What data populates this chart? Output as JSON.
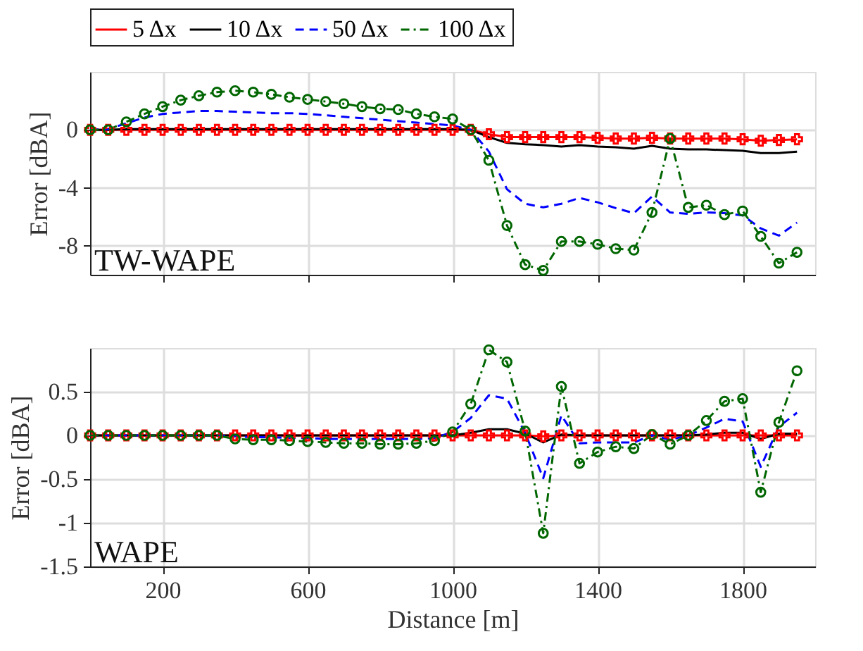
{
  "chart_data": [
    {
      "type": "line",
      "ylabel": "Error [dBA]",
      "xlim": [
        0,
        2000
      ],
      "xticks": [
        200,
        600,
        1000,
        1400,
        1800
      ],
      "ylim": [
        -10,
        4
      ],
      "yticks": [
        -8,
        -4,
        0
      ],
      "grid": true,
      "legend": "top",
      "tick_labels": "y",
      "annotations": [
        "TW-WAPE"
      ],
      "x": [
        0,
        50,
        100,
        150,
        200,
        250,
        300,
        350,
        400,
        450,
        500,
        550,
        600,
        650,
        700,
        750,
        800,
        850,
        900,
        950,
        1000,
        1050,
        1100,
        1150,
        1200,
        1250,
        1300,
        1350,
        1400,
        1450,
        1500,
        1550,
        1600,
        1650,
        1700,
        1750,
        1800,
        1850,
        1900,
        1950
      ],
      "series": [
        {
          "name": "5 Δx",
          "color": "#ff0000",
          "marker": "cross",
          "line_style": "solid",
          "values": [
            0,
            0,
            0,
            0,
            0,
            0,
            0,
            0,
            0,
            0,
            0,
            0,
            0,
            0,
            0,
            0,
            0,
            0,
            0,
            0,
            0,
            0,
            -0.3,
            -0.5,
            -0.5,
            -0.5,
            -0.5,
            -0.5,
            -0.55,
            -0.6,
            -0.6,
            -0.55,
            -0.6,
            -0.6,
            -0.6,
            -0.6,
            -0.65,
            -0.75,
            -0.7,
            -0.65
          ]
        },
        {
          "name": "10 Δx",
          "color": "#000000",
          "marker": "none",
          "line_style": "solid",
          "values": [
            0,
            0,
            0.05,
            0.05,
            0.05,
            0.05,
            0.05,
            0.05,
            0.05,
            0.05,
            0.05,
            0.05,
            0.05,
            0.05,
            0.05,
            0.05,
            0.05,
            0.05,
            0.05,
            0.05,
            0.05,
            0,
            -0.5,
            -0.9,
            -1.0,
            -1.05,
            -1.15,
            -1.05,
            -1.15,
            -1.2,
            -1.3,
            -1.1,
            -1.3,
            -1.35,
            -1.35,
            -1.4,
            -1.45,
            -1.6,
            -1.6,
            -1.5
          ]
        },
        {
          "name": "50 Δx",
          "color": "#0000ff",
          "marker": "none",
          "line_style": "dashed",
          "values": [
            0,
            0.05,
            0.45,
            0.85,
            1.1,
            1.2,
            1.3,
            1.3,
            1.25,
            1.2,
            1.15,
            1.15,
            1.1,
            1.0,
            0.9,
            0.8,
            0.7,
            0.6,
            0.5,
            0.4,
            0.3,
            0,
            -1.5,
            -4.1,
            -5.1,
            -5.35,
            -5.1,
            -4.7,
            -5.0,
            -5.4,
            -5.75,
            -4.6,
            -5.7,
            -5.8,
            -5.7,
            -5.75,
            -5.9,
            -6.8,
            -7.3,
            -6.4
          ]
        },
        {
          "name": "100 Δx",
          "color": "#006600",
          "marker": "circle",
          "line_style": "dotted",
          "values": [
            0,
            0,
            0.55,
            1.1,
            1.6,
            2.05,
            2.35,
            2.6,
            2.7,
            2.6,
            2.45,
            2.25,
            2.1,
            1.95,
            1.8,
            1.6,
            1.45,
            1.4,
            1.1,
            0.9,
            0.75,
            0,
            -2.1,
            -6.6,
            -9.3,
            -9.7,
            -7.7,
            -7.7,
            -7.9,
            -8.2,
            -8.3,
            -5.7,
            -0.6,
            -5.35,
            -5.2,
            -5.85,
            -5.6,
            -7.35,
            -9.2,
            -8.45
          ]
        }
      ]
    },
    {
      "type": "line",
      "xlabel": "Distance [m]",
      "ylabel": "Error [dBA]",
      "xlim": [
        0,
        2000
      ],
      "xticks": [
        200,
        600,
        1000,
        1400,
        1800
      ],
      "ylim": [
        -1.5,
        1
      ],
      "yticks": [
        -1.5,
        -1,
        -0.5,
        0,
        0.5
      ],
      "grid": true,
      "annotations": [
        "WAPE"
      ],
      "x": [
        0,
        50,
        100,
        150,
        200,
        250,
        300,
        350,
        400,
        450,
        500,
        550,
        600,
        650,
        700,
        750,
        800,
        850,
        900,
        950,
        1000,
        1050,
        1100,
        1150,
        1200,
        1250,
        1300,
        1350,
        1400,
        1450,
        1500,
        1550,
        1600,
        1650,
        1700,
        1750,
        1800,
        1850,
        1900,
        1950
      ],
      "series": [
        {
          "name": "5 Δx",
          "color": "#ff0000",
          "marker": "cross",
          "line_style": "solid",
          "values": [
            0,
            0,
            0,
            0,
            0,
            0,
            0,
            0,
            0,
            0,
            0,
            0,
            0,
            0,
            0,
            0,
            0,
            0,
            0,
            0,
            0,
            0,
            0,
            0,
            0,
            -0.01,
            0,
            0,
            0,
            0,
            0,
            0,
            0,
            0,
            0,
            0,
            0,
            0,
            0,
            0
          ]
        },
        {
          "name": "10 Δx",
          "color": "#000000",
          "marker": "none",
          "line_style": "solid",
          "values": [
            0,
            0,
            0,
            0,
            0,
            0,
            0,
            0,
            0,
            0,
            0,
            0,
            0,
            0,
            0,
            0,
            0,
            0,
            0,
            0,
            0,
            0.03,
            0.07,
            0.07,
            0.02,
            -0.08,
            0.01,
            0,
            0,
            0,
            0,
            0,
            0,
            0,
            0.01,
            0.03,
            0.03,
            -0.04,
            0.02,
            0.02
          ]
        },
        {
          "name": "50 Δx",
          "color": "#0000ff",
          "marker": "none",
          "line_style": "dashed",
          "values": [
            0,
            0,
            0,
            0,
            0,
            0,
            0,
            0,
            -0.01,
            -0.02,
            -0.02,
            -0.03,
            -0.03,
            -0.04,
            -0.04,
            -0.04,
            -0.04,
            -0.04,
            -0.04,
            -0.03,
            0.04,
            0.2,
            0.46,
            0.42,
            0.03,
            -0.49,
            0.23,
            -0.09,
            -0.08,
            -0.08,
            -0.08,
            0,
            -0.05,
            0,
            0.09,
            0.19,
            0.16,
            -0.36,
            0.1,
            0.26
          ]
        },
        {
          "name": "100 Δx",
          "color": "#006600",
          "marker": "circle",
          "line_style": "dotted",
          "values": [
            0,
            0,
            0,
            0,
            0,
            0,
            0,
            0,
            -0.04,
            -0.05,
            -0.05,
            -0.06,
            -0.07,
            -0.08,
            -0.09,
            -0.09,
            -0.1,
            -0.1,
            -0.09,
            -0.06,
            0.04,
            0.36,
            0.98,
            0.84,
            0.05,
            -1.12,
            0.56,
            -0.32,
            -0.19,
            -0.13,
            -0.15,
            0.01,
            -0.1,
            0,
            0.17,
            0.39,
            0.42,
            -0.65,
            0.15,
            0.74
          ]
        }
      ]
    }
  ]
}
